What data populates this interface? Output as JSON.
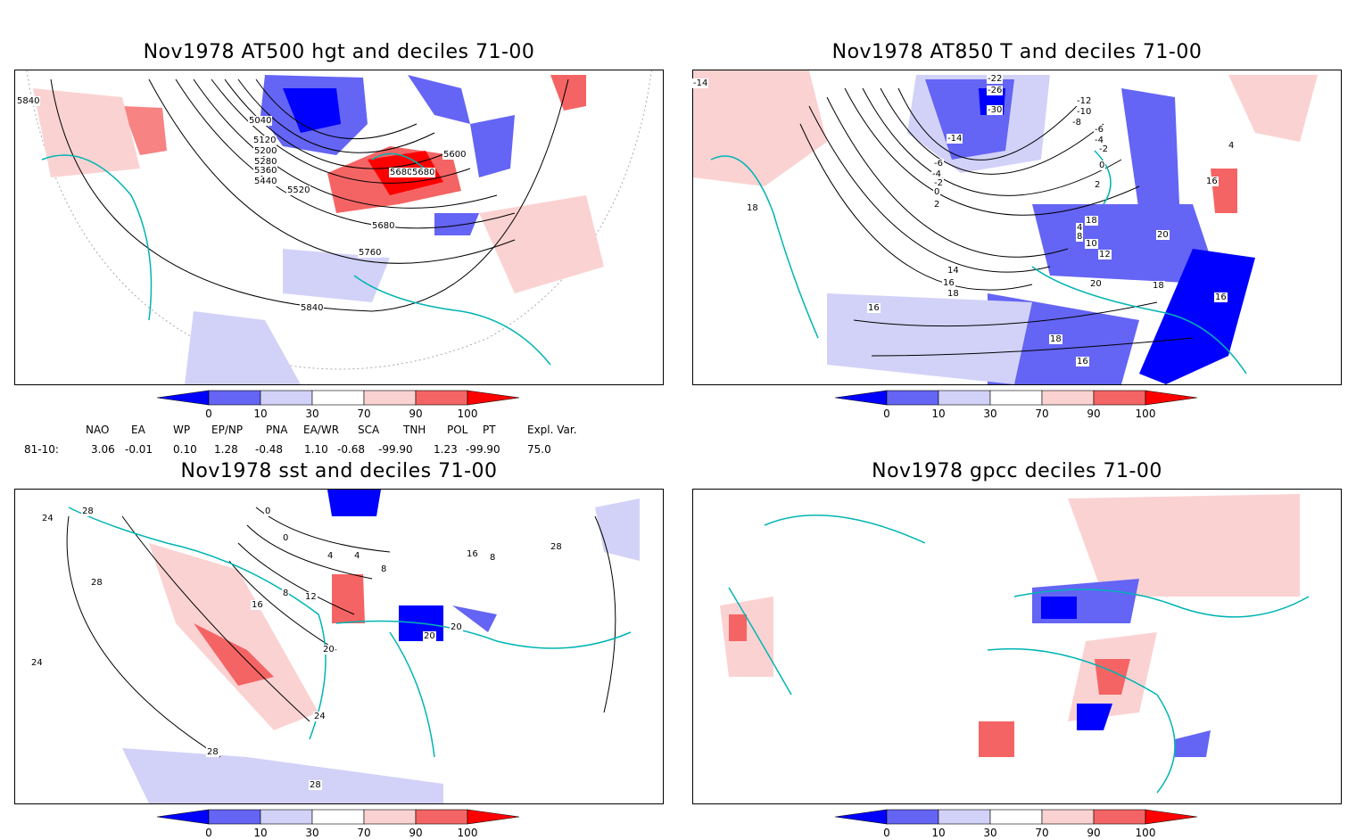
{
  "panels": [
    {
      "title": "Nov1978 AT500 hgt and deciles 71-00",
      "labels": [
        "5840",
        "5040",
        "5120",
        "5200",
        "5280",
        "5360",
        "5440",
        "5520",
        "5600",
        "5680",
        "5680",
        "5680",
        "5760",
        "5840"
      ]
    },
    {
      "title": "Nov1978 AT850 T and deciles 71-00",
      "labels": [
        "-14",
        "-22",
        "-26",
        "-30",
        "-14",
        "-12",
        "-10",
        "-8",
        "-6",
        "-4",
        "-2",
        "0",
        "2",
        "-6",
        "-4",
        "-2",
        "0",
        "2",
        "4",
        "16",
        "18",
        "18",
        "4",
        "8",
        "10",
        "12",
        "14",
        "16",
        "18",
        "20",
        "20",
        "18",
        "16",
        "16",
        "18",
        "16"
      ]
    },
    {
      "title": "Nov1978 sst and deciles 71-00",
      "labels": [
        "28",
        "24",
        "24",
        "28",
        "0",
        "0",
        "4",
        "4",
        "8",
        "8",
        "12",
        "16",
        "20",
        "20",
        "20",
        "24",
        "28",
        "28",
        "28",
        "8",
        "16"
      ]
    },
    {
      "title": "Nov1978 gpcc deciles 71-00",
      "labels": []
    }
  ],
  "colorbar": {
    "ticks": [
      "0",
      "10",
      "30",
      "70",
      "90",
      "100"
    ],
    "colors": [
      "#0000ff",
      "#6464f5",
      "#d2d2f8",
      "#ffffff",
      "#fbd2d2",
      "#f56464",
      "#ff0000"
    ]
  },
  "index_table": {
    "headers": [
      "NAO",
      "EA",
      "WP",
      "EP/NP",
      "PNA",
      "EA/WR",
      "SCA",
      "TNH",
      "POL",
      "PT",
      "Expl. Var."
    ],
    "row_label": "81-10:",
    "values": [
      "3.06",
      "-0.01",
      "0.10",
      "1.28",
      "-0.48",
      "1.10",
      "-0.68",
      "-99.90",
      "1.23",
      "-99.90",
      "75.0"
    ]
  },
  "colors": {
    "coast": "#00b4b4",
    "contour": "#000000"
  }
}
